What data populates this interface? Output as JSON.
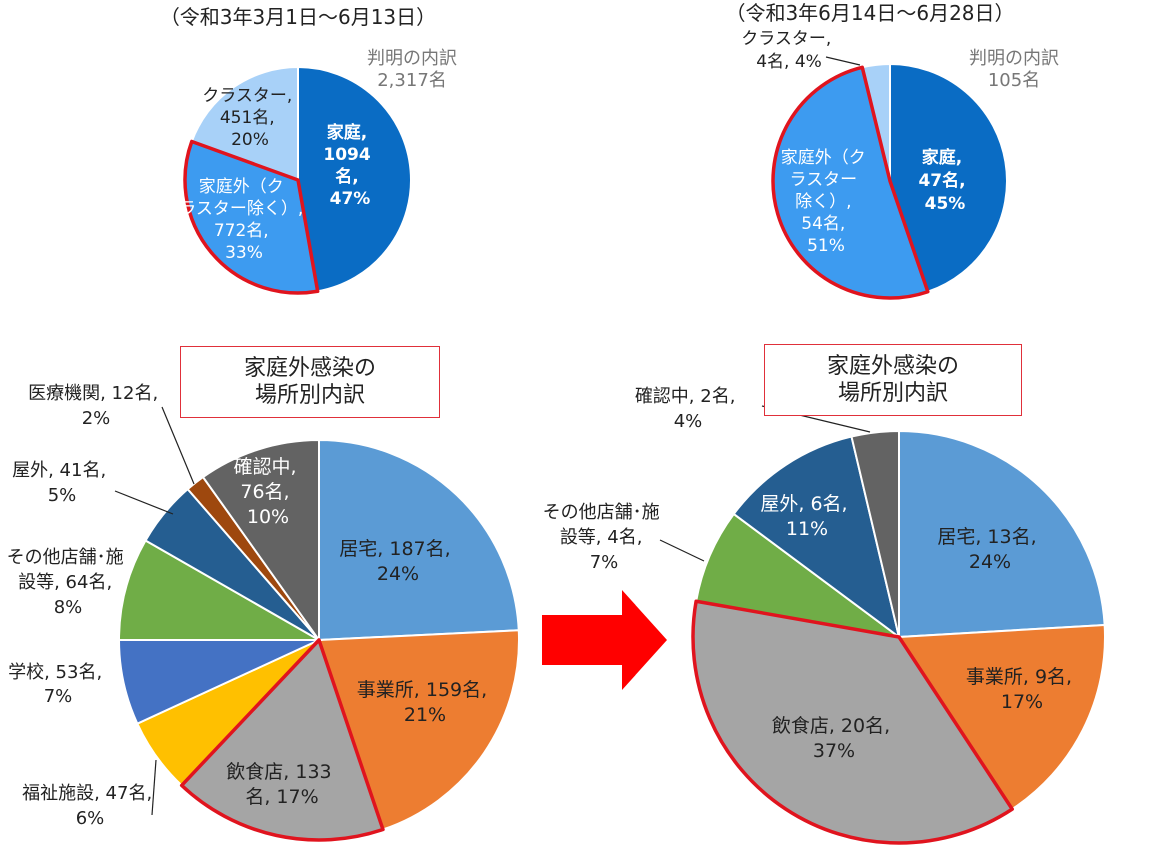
{
  "boxes": [
    {
      "line1": "家庭外感染の",
      "line2": "場所別内訳"
    },
    {
      "line1": "家庭外感染の",
      "line2": "場所別内訳"
    }
  ],
  "chart_data": [
    {
      "type": "pie",
      "title": "（令和3年3月1日～6月13日）",
      "subtitle": [
        "判明の内訳",
        "2,317名"
      ],
      "slices": [
        {
          "label": [
            "家庭,",
            "1094",
            "名,",
            "47%"
          ],
          "value": 1094,
          "percent": 47,
          "color": "#0a6cc4"
        },
        {
          "label": [
            "家庭外（ク",
            "ラスター除く）,",
            "772名,",
            "33%"
          ],
          "value": 772,
          "percent": 33,
          "color": "#3d9bf0"
        },
        {
          "label": [
            "クラスター,",
            "451名,",
            "20%"
          ],
          "value": 451,
          "percent": 20,
          "color": "#a8d1f8"
        }
      ]
    },
    {
      "type": "pie",
      "title": "（令和3年6月14日～6月28日）",
      "subtitle": [
        "判明の内訳",
        "105名"
      ],
      "slices": [
        {
          "label": [
            "家庭,",
            "47名,",
            "45%"
          ],
          "value": 47,
          "percent": 45,
          "color": "#0a6cc4"
        },
        {
          "label": [
            "家庭外（ク",
            "ラスター",
            "除く）,",
            "54名,",
            "51%"
          ],
          "value": 54,
          "percent": 51,
          "color": "#3d9bf0"
        },
        {
          "label": [
            "クラスター,",
            "4名, 4%"
          ],
          "value": 4,
          "percent": 4,
          "color": "#a8d1f8"
        }
      ]
    },
    {
      "type": "pie",
      "title": "",
      "slices": [
        {
          "label": [
            "居宅, 187名,",
            "24%"
          ],
          "value": 187,
          "percent": 24,
          "color": "#5b9bd5"
        },
        {
          "label": [
            "事業所, 159名,",
            "21%"
          ],
          "value": 159,
          "percent": 21,
          "color": "#ed7d31"
        },
        {
          "label": [
            "飲食店, 133",
            "名, 17%"
          ],
          "value": 133,
          "percent": 17,
          "color": "#a5a5a5"
        },
        {
          "label": [
            "福祉施設, 47名,",
            "6%"
          ],
          "value": 47,
          "percent": 6,
          "color": "#ffc000"
        },
        {
          "label": [
            "学校, 53名,",
            "7%"
          ],
          "value": 53,
          "percent": 7,
          "color": "#4472c4"
        },
        {
          "label": [
            "その他店舗･施",
            "設等, 64名,",
            "8%"
          ],
          "value": 64,
          "percent": 8,
          "color": "#70ad47"
        },
        {
          "label": [
            "屋外, 41名,",
            "5%"
          ],
          "value": 41,
          "percent": 5,
          "color": "#255e91"
        },
        {
          "label": [
            "医療機関, 12名,",
            "2%"
          ],
          "value": 12,
          "percent": 2,
          "color": "#9e480e"
        },
        {
          "label": [
            "確認中,",
            "76名,",
            "10%"
          ],
          "value": 76,
          "percent": 10,
          "color": "#636363"
        }
      ]
    },
    {
      "type": "pie",
      "title": "",
      "slices": [
        {
          "label": [
            "居宅, 13名,",
            "24%"
          ],
          "value": 13,
          "percent": 24,
          "color": "#5b9bd5"
        },
        {
          "label": [
            "事業所, 9名,",
            "17%"
          ],
          "value": 9,
          "percent": 17,
          "color": "#ed7d31"
        },
        {
          "label": [
            "飲食店, 20名,",
            "37%"
          ],
          "value": 20,
          "percent": 37,
          "color": "#a5a5a5"
        },
        {
          "label": [
            "その他店舗･施",
            "設等, 4名,",
            "7%"
          ],
          "value": 4,
          "percent": 7,
          "color": "#70ad47"
        },
        {
          "label": [
            "屋外, 6名,",
            "11%"
          ],
          "value": 6,
          "percent": 11,
          "color": "#255e91"
        },
        {
          "label": [
            "確認中, 2名,",
            "4%"
          ],
          "value": 2,
          "percent": 4,
          "color": "#636363"
        }
      ]
    }
  ]
}
